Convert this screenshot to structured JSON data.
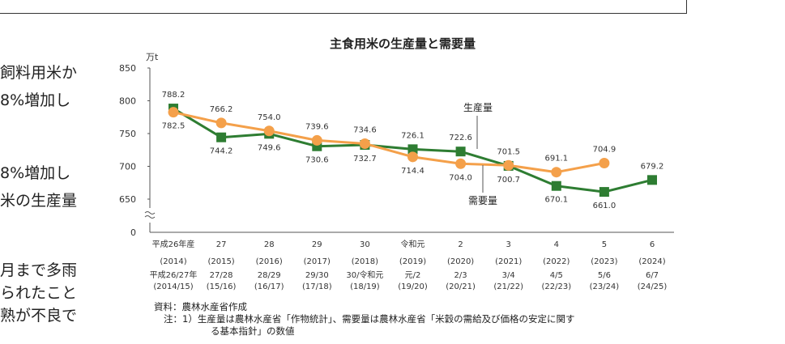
{
  "side_texts": [
    "飼料用米か",
    "8%増加し",
    "8%増加し",
    "米の生産量",
    "月まで多雨",
    "られたこと",
    "熟が不良で"
  ],
  "chart_data": {
    "type": "line",
    "title": "主食用米の生産量と需要量",
    "y_unit": "万t",
    "ylim": [
      650,
      850
    ],
    "y_ticks": [
      650,
      700,
      750,
      800,
      850
    ],
    "y_zero_label": "0",
    "categories_line1": [
      "平成26年産",
      "27",
      "28",
      "29",
      "30",
      "令和元",
      "2",
      "3",
      "4",
      "5",
      "6"
    ],
    "categories_line2": [
      "(2014)",
      "(2015)",
      "(2016)",
      "(2017)",
      "(2018)",
      "(2019)",
      "(2020)",
      "(2021)",
      "(2022)",
      "(2023)",
      "(2024)"
    ],
    "demand_years_line1": [
      "平成26/27年",
      "27/28",
      "28/29",
      "29/30",
      "30/令和元",
      "元/2",
      "2/3",
      "3/4",
      "4/5",
      "5/6",
      "6/7"
    ],
    "demand_years_line2": [
      "(2014/15)",
      "(15/16)",
      "(16/17)",
      "(17/18)",
      "(18/19)",
      "(19/20)",
      "(20/21)",
      "(21/22)",
      "(22/23)",
      "(23/24)",
      "(24/25)"
    ],
    "series": [
      {
        "name": "生産量",
        "color": "#2e7d32",
        "marker": "square",
        "values": [
          788.2,
          744.2,
          749.6,
          730.6,
          732.7,
          726.1,
          722.6,
          700.7,
          670.1,
          661.0,
          679.2
        ]
      },
      {
        "name": "需要量",
        "color": "#f4a04a",
        "marker": "circle",
        "values": [
          782.5,
          766.2,
          754.0,
          739.6,
          734.6,
          714.4,
          704.0,
          701.5,
          691.1,
          704.9,
          null
        ]
      }
    ]
  },
  "notes": {
    "source": "資料：農林水産省作成",
    "note_line1": "注：1）生産量は農林水産省「作物統計」、需要量は農林水産省「米穀の需給及び価格の安定に関す",
    "note_line2": "る基本指針」の数値"
  }
}
